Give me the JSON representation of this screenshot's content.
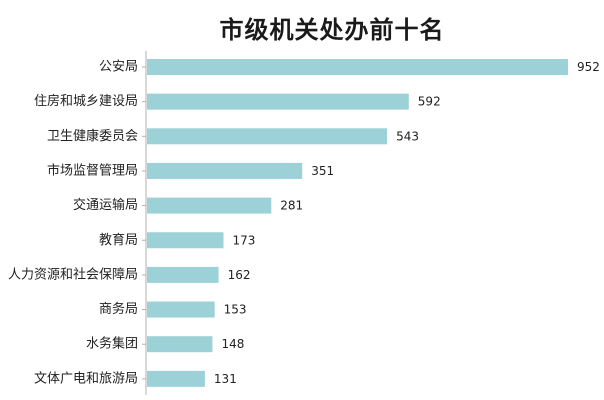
{
  "chart_data": {
    "type": "bar",
    "orientation": "horizontal",
    "title": "市级机关处办前十名",
    "categories": [
      "公安局",
      "住房和城乡建设局",
      "卫生健康委员会",
      "市场监督管理局",
      "交通运输局",
      "教育局",
      "人力资源和社会保障局",
      "商务局",
      "水务集团",
      "文体广电和旅游局"
    ],
    "values": [
      952,
      592,
      543,
      351,
      281,
      173,
      162,
      153,
      148,
      131
    ],
    "xlabel": "",
    "ylabel": "",
    "xlim": [
      0,
      952
    ],
    "grid": false,
    "bar_color": "#9dd1d8",
    "axis_color": "#b0b0b0"
  }
}
